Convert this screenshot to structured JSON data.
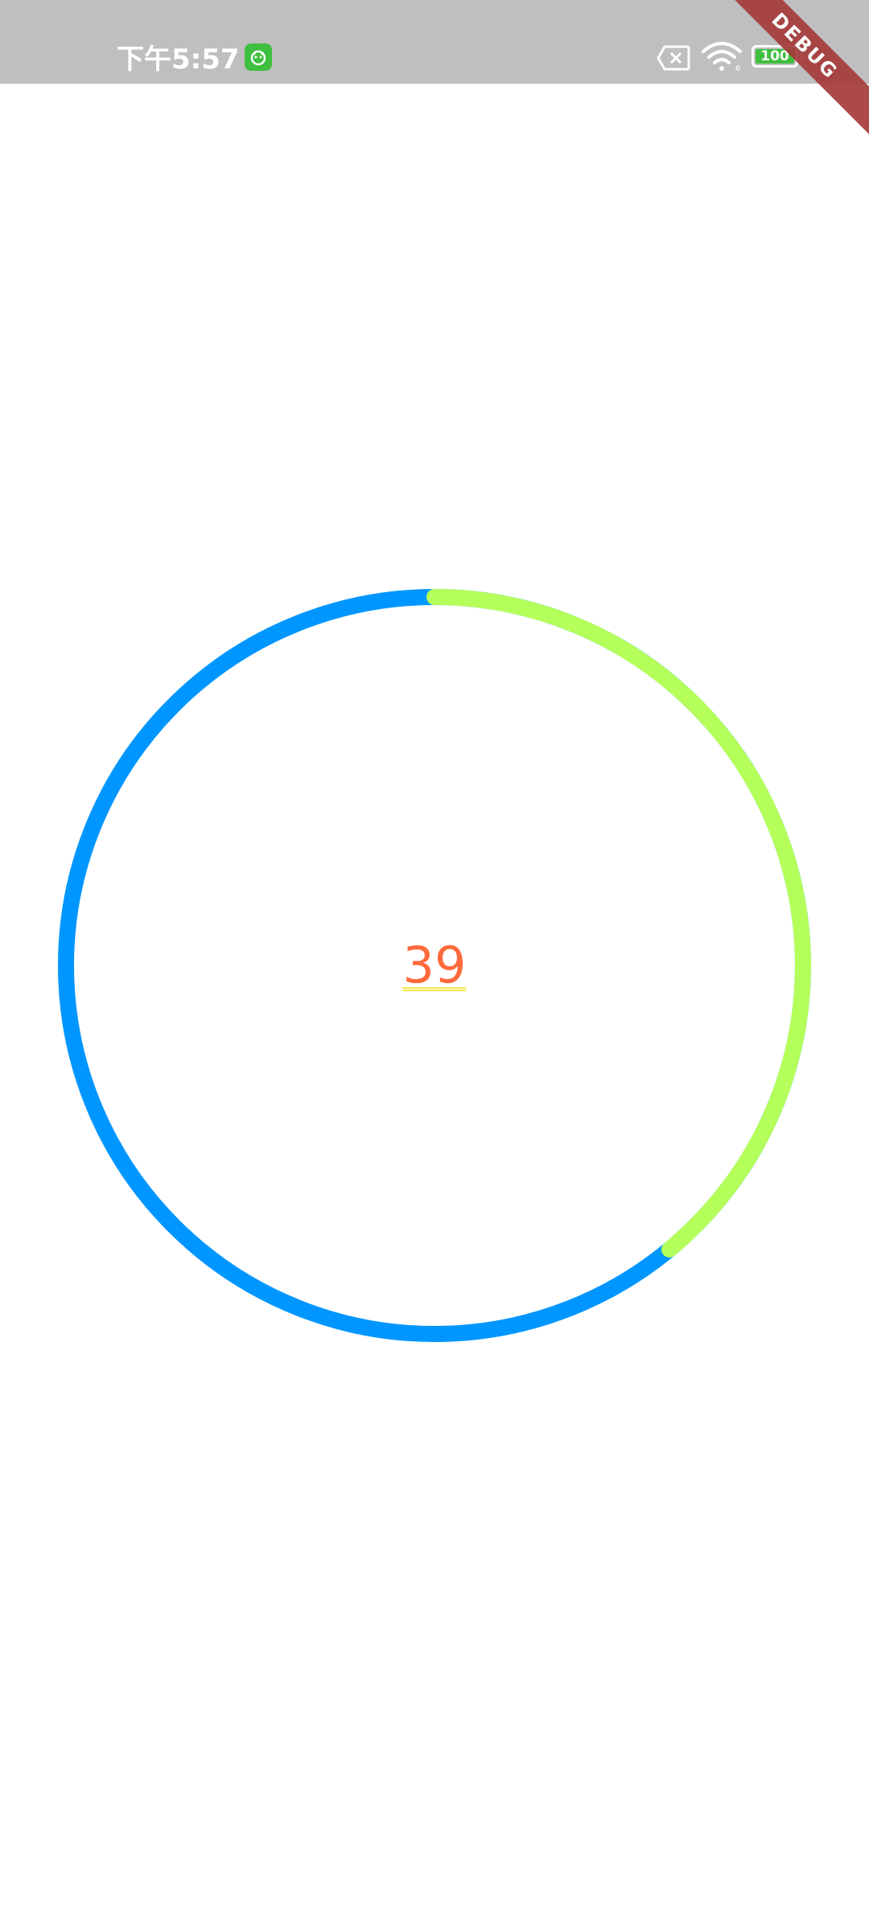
{
  "status_bar": {
    "time": "下午5:57",
    "battery_level": "100",
    "icons": [
      "app-badge-icon",
      "sim-off-icon",
      "wifi-icon",
      "battery-icon"
    ],
    "background_color": "#bfbfbf"
  },
  "debug_banner": {
    "label": "DEBUG",
    "color": "#a63a3a"
  },
  "progress": {
    "value_label": "39",
    "fraction": 0.39,
    "track_color": "#0096ff",
    "progress_color": "#b5ff5a",
    "text_color": "#ff6a3c"
  }
}
